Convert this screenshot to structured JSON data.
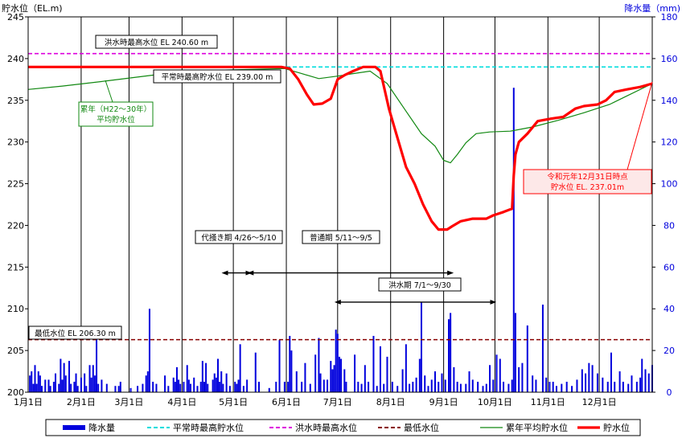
{
  "chart_data": {
    "type": "line",
    "y_left_label": "貯水位（EL.m)",
    "y_right_label": "降水量（mm)",
    "y_left_range": [
      200,
      245
    ],
    "y_right_range": [
      0,
      180
    ],
    "y_left_ticks": [
      "200",
      "205",
      "210",
      "215",
      "220",
      "225",
      "230",
      "235",
      "240",
      "245"
    ],
    "y_right_ticks": [
      "0",
      "20",
      "40",
      "60",
      "80",
      "100",
      "120",
      "140",
      "160",
      "180"
    ],
    "x_range_days": [
      0,
      365
    ],
    "x_ticks": [
      {
        "label": "1月1日",
        "day": 0
      },
      {
        "label": "2月1日",
        "day": 31
      },
      {
        "label": "3月1日",
        "day": 59
      },
      {
        "label": "4月1日",
        "day": 90
      },
      {
        "label": "5月1日",
        "day": 120
      },
      {
        "label": "6月1日",
        "day": 151
      },
      {
        "label": "7月1日",
        "day": 181
      },
      {
        "label": "8月1日",
        "day": 212
      },
      {
        "label": "9月1日",
        "day": 243
      },
      {
        "label": "10月1日",
        "day": 273
      },
      {
        "label": "11月1日",
        "day": 304
      },
      {
        "label": "12月1日",
        "day": 334
      }
    ],
    "colors": {
      "rain": "#0000dd",
      "normal_max": "#00dddd",
      "flood_max": "#dd00dd",
      "min_level": "#880000",
      "avg_level": "#118811",
      "level": "#ff0000"
    },
    "hlines": [
      {
        "id": "flood_max",
        "value": 240.6,
        "label": "洪水時最高水位  EL 240.60 m"
      },
      {
        "id": "normal_max",
        "value": 239.0,
        "label": "平常時最高貯水位  EL 239.00 m"
      },
      {
        "id": "min_level",
        "value": 206.3,
        "label": "最低水位  EL 206.30 m"
      }
    ],
    "periods": [
      {
        "label": "代掻き期  4/26～5/10",
        "start": 115,
        "end": 129,
        "y": 214.3
      },
      {
        "label": "普通期  5/11～9/5",
        "start": 130,
        "end": 247,
        "y": 214.3
      },
      {
        "label": "洪水期  7/1～9/30",
        "start": 181,
        "end": 272,
        "y": 210.8
      }
    ],
    "avg_label": [
      "累年（H22～30年）",
      "平均貯水位"
    ],
    "annotation": [
      "令和元年12月31日時点",
      "貯水位  EL. 237.01m"
    ],
    "series": [
      {
        "name": "貯水位",
        "axis": "left",
        "points": [
          [
            0,
            239
          ],
          [
            120,
            239
          ],
          [
            148,
            239
          ],
          [
            153,
            238.8
          ],
          [
            158,
            237.5
          ],
          [
            163,
            235.7
          ],
          [
            167,
            234.5
          ],
          [
            172,
            234.6
          ],
          [
            177,
            235.2
          ],
          [
            181,
            237.5
          ],
          [
            185,
            238
          ],
          [
            190,
            238.5
          ],
          [
            196,
            239
          ],
          [
            203,
            239
          ],
          [
            206,
            238.5
          ],
          [
            211,
            234
          ],
          [
            216,
            230.5
          ],
          [
            221,
            227
          ],
          [
            226,
            225
          ],
          [
            231,
            222.5
          ],
          [
            236,
            220.5
          ],
          [
            240,
            219.5
          ],
          [
            245,
            219.5
          ],
          [
            248,
            219.9
          ],
          [
            253,
            220.5
          ],
          [
            260,
            220.8
          ],
          [
            268,
            220.8
          ],
          [
            272,
            221.2
          ],
          [
            278,
            221.6
          ],
          [
            283,
            222
          ],
          [
            284,
            226
          ],
          [
            285,
            228.5
          ],
          [
            287,
            230
          ],
          [
            292,
            231
          ],
          [
            298,
            232.5
          ],
          [
            306,
            232.8
          ],
          [
            313,
            233
          ],
          [
            320,
            234
          ],
          [
            325,
            234.3
          ],
          [
            333,
            234.5
          ],
          [
            338,
            235
          ],
          [
            343,
            236
          ],
          [
            350,
            236.3
          ],
          [
            358,
            236.6
          ],
          [
            365,
            237.0
          ]
        ]
      },
      {
        "name": "累年平均貯水位",
        "axis": "left",
        "points": [
          [
            0,
            236.3
          ],
          [
            20,
            236.7
          ],
          [
            45,
            237.3
          ],
          [
            80,
            238.2
          ],
          [
            110,
            238.6
          ],
          [
            150,
            238.8
          ],
          [
            160,
            238.2
          ],
          [
            170,
            237.6
          ],
          [
            181,
            237.9
          ],
          [
            190,
            238.2
          ],
          [
            200,
            238.5
          ],
          [
            210,
            237
          ],
          [
            220,
            234
          ],
          [
            230,
            231
          ],
          [
            238,
            229.5
          ],
          [
            243,
            227.8
          ],
          [
            247,
            227.5
          ],
          [
            251,
            228.5
          ],
          [
            256,
            229.9
          ],
          [
            262,
            231
          ],
          [
            270,
            231.2
          ],
          [
            282,
            231.3
          ],
          [
            295,
            231.8
          ],
          [
            310,
            232.6
          ],
          [
            325,
            233.5
          ],
          [
            340,
            234.5
          ],
          [
            350,
            235.5
          ],
          [
            365,
            237
          ]
        ]
      },
      {
        "name": "降水量",
        "axis": "right",
        "bars": [
          [
            1,
            8
          ],
          [
            2,
            10
          ],
          [
            3,
            4
          ],
          [
            4,
            13
          ],
          [
            5,
            4
          ],
          [
            6,
            10
          ],
          [
            7,
            8
          ],
          [
            8,
            3
          ],
          [
            10,
            6
          ],
          [
            12,
            6
          ],
          [
            13,
            3
          ],
          [
            15,
            5
          ],
          [
            16,
            9
          ],
          [
            18,
            4
          ],
          [
            19,
            16
          ],
          [
            20,
            6
          ],
          [
            21,
            14
          ],
          [
            22,
            8
          ],
          [
            24,
            15
          ],
          [
            25,
            4
          ],
          [
            27,
            5
          ],
          [
            28,
            9
          ],
          [
            29,
            3
          ],
          [
            31,
            7
          ],
          [
            33,
            9
          ],
          [
            34,
            3
          ],
          [
            36,
            13
          ],
          [
            37,
            7
          ],
          [
            38,
            13
          ],
          [
            39,
            8
          ],
          [
            40,
            26
          ],
          [
            41,
            4
          ],
          [
            43,
            6
          ],
          [
            46,
            4
          ],
          [
            51,
            3
          ],
          [
            53,
            3
          ],
          [
            54,
            5
          ],
          [
            60,
            2
          ],
          [
            64,
            3
          ],
          [
            67,
            4
          ],
          [
            69,
            8
          ],
          [
            70,
            10
          ],
          [
            71,
            40
          ],
          [
            73,
            5
          ],
          [
            75,
            4
          ],
          [
            80,
            8
          ],
          [
            82,
            3
          ],
          [
            85,
            7
          ],
          [
            86,
            5
          ],
          [
            87,
            12
          ],
          [
            88,
            6
          ],
          [
            89,
            4
          ],
          [
            91,
            5
          ],
          [
            93,
            13
          ],
          [
            94,
            6
          ],
          [
            95,
            4
          ],
          [
            97,
            7
          ],
          [
            99,
            3
          ],
          [
            101,
            5
          ],
          [
            102,
            15
          ],
          [
            103,
            5
          ],
          [
            104,
            14
          ],
          [
            105,
            4
          ],
          [
            108,
            6
          ],
          [
            109,
            9
          ],
          [
            110,
            7
          ],
          [
            111,
            16
          ],
          [
            112,
            5
          ],
          [
            113,
            10
          ],
          [
            114,
            4
          ],
          [
            116,
            9
          ],
          [
            118,
            3
          ],
          [
            121,
            5
          ],
          [
            122,
            4
          ],
          [
            123,
            6
          ],
          [
            124,
            23
          ],
          [
            126,
            3
          ],
          [
            128,
            6
          ],
          [
            133,
            19
          ],
          [
            135,
            5
          ],
          [
            141,
            2
          ],
          [
            145,
            5
          ],
          [
            147,
            25
          ],
          [
            150,
            5
          ],
          [
            152,
            5
          ],
          [
            153,
            27
          ],
          [
            154,
            20
          ],
          [
            157,
            10
          ],
          [
            160,
            5
          ],
          [
            162,
            14
          ],
          [
            165,
            4
          ],
          [
            168,
            18
          ],
          [
            170,
            26
          ],
          [
            171,
            9
          ],
          [
            173,
            6
          ],
          [
            175,
            6
          ],
          [
            177,
            15
          ],
          [
            178,
            11
          ],
          [
            179,
            13
          ],
          [
            180,
            30
          ],
          [
            181,
            28
          ],
          [
            182,
            17
          ],
          [
            183,
            16
          ],
          [
            185,
            11
          ],
          [
            186,
            5
          ],
          [
            191,
            18
          ],
          [
            193,
            5
          ],
          [
            195,
            4
          ],
          [
            197,
            13
          ],
          [
            199,
            5
          ],
          [
            202,
            27
          ],
          [
            204,
            3
          ],
          [
            206,
            22
          ],
          [
            208,
            4
          ],
          [
            210,
            17
          ],
          [
            213,
            5
          ],
          [
            216,
            3
          ],
          [
            219,
            11
          ],
          [
            221,
            23
          ],
          [
            223,
            4
          ],
          [
            225,
            5
          ],
          [
            227,
            7
          ],
          [
            229,
            16
          ],
          [
            230,
            43
          ],
          [
            232,
            8
          ],
          [
            234,
            3
          ],
          [
            236,
            6
          ],
          [
            238,
            10
          ],
          [
            240,
            5
          ],
          [
            242,
            9
          ],
          [
            244,
            6
          ],
          [
            246,
            35
          ],
          [
            247,
            38
          ],
          [
            249,
            12
          ],
          [
            251,
            5
          ],
          [
            253,
            4
          ],
          [
            256,
            4
          ],
          [
            258,
            10
          ],
          [
            260,
            6
          ],
          [
            263,
            5
          ],
          [
            266,
            3
          ],
          [
            268,
            4
          ],
          [
            270,
            13
          ],
          [
            272,
            6
          ],
          [
            274,
            18
          ],
          [
            276,
            16
          ],
          [
            278,
            5
          ],
          [
            281,
            4
          ],
          [
            283,
            6
          ],
          [
            284,
            146
          ],
          [
            285,
            38
          ],
          [
            287,
            12
          ],
          [
            289,
            14
          ],
          [
            292,
            32
          ],
          [
            295,
            8
          ],
          [
            297,
            6
          ],
          [
            301,
            42
          ],
          [
            303,
            7
          ],
          [
            305,
            5
          ],
          [
            307,
            5
          ],
          [
            309,
            3
          ],
          [
            312,
            4
          ],
          [
            315,
            5
          ],
          [
            318,
            3
          ],
          [
            321,
            6
          ],
          [
            324,
            11
          ],
          [
            326,
            9
          ],
          [
            328,
            14
          ],
          [
            330,
            13
          ],
          [
            333,
            9
          ],
          [
            336,
            7
          ],
          [
            339,
            5
          ],
          [
            341,
            19
          ],
          [
            343,
            5
          ],
          [
            346,
            10
          ],
          [
            348,
            5
          ],
          [
            351,
            4
          ],
          [
            353,
            8
          ],
          [
            356,
            5
          ],
          [
            358,
            7
          ],
          [
            359,
            16
          ],
          [
            361,
            11
          ],
          [
            363,
            9
          ],
          [
            365,
            13
          ]
        ]
      },
      {
        "name": "平常時最高貯水位",
        "axis": "left",
        "value": 239.0
      },
      {
        "name": "洪水時最高水位",
        "axis": "left",
        "value": 240.6
      },
      {
        "name": "最低水位",
        "axis": "left",
        "value": 206.3
      }
    ],
    "legend": [
      {
        "label": "降水量",
        "style": "bar",
        "color": "#0000dd"
      },
      {
        "label": "平常時最高貯水位",
        "style": "dash",
        "color": "#00dddd"
      },
      {
        "label": "洪水時最高水位",
        "style": "dash",
        "color": "#dd00dd"
      },
      {
        "label": "最低水位",
        "style": "dash",
        "color": "#880000"
      },
      {
        "label": "累年平均貯水位",
        "style": "line",
        "color": "#118811"
      },
      {
        "label": "貯水位",
        "style": "thick",
        "color": "#ff0000"
      }
    ],
    "legend_position": "bottom",
    "grid": "vertical-month-lines"
  }
}
